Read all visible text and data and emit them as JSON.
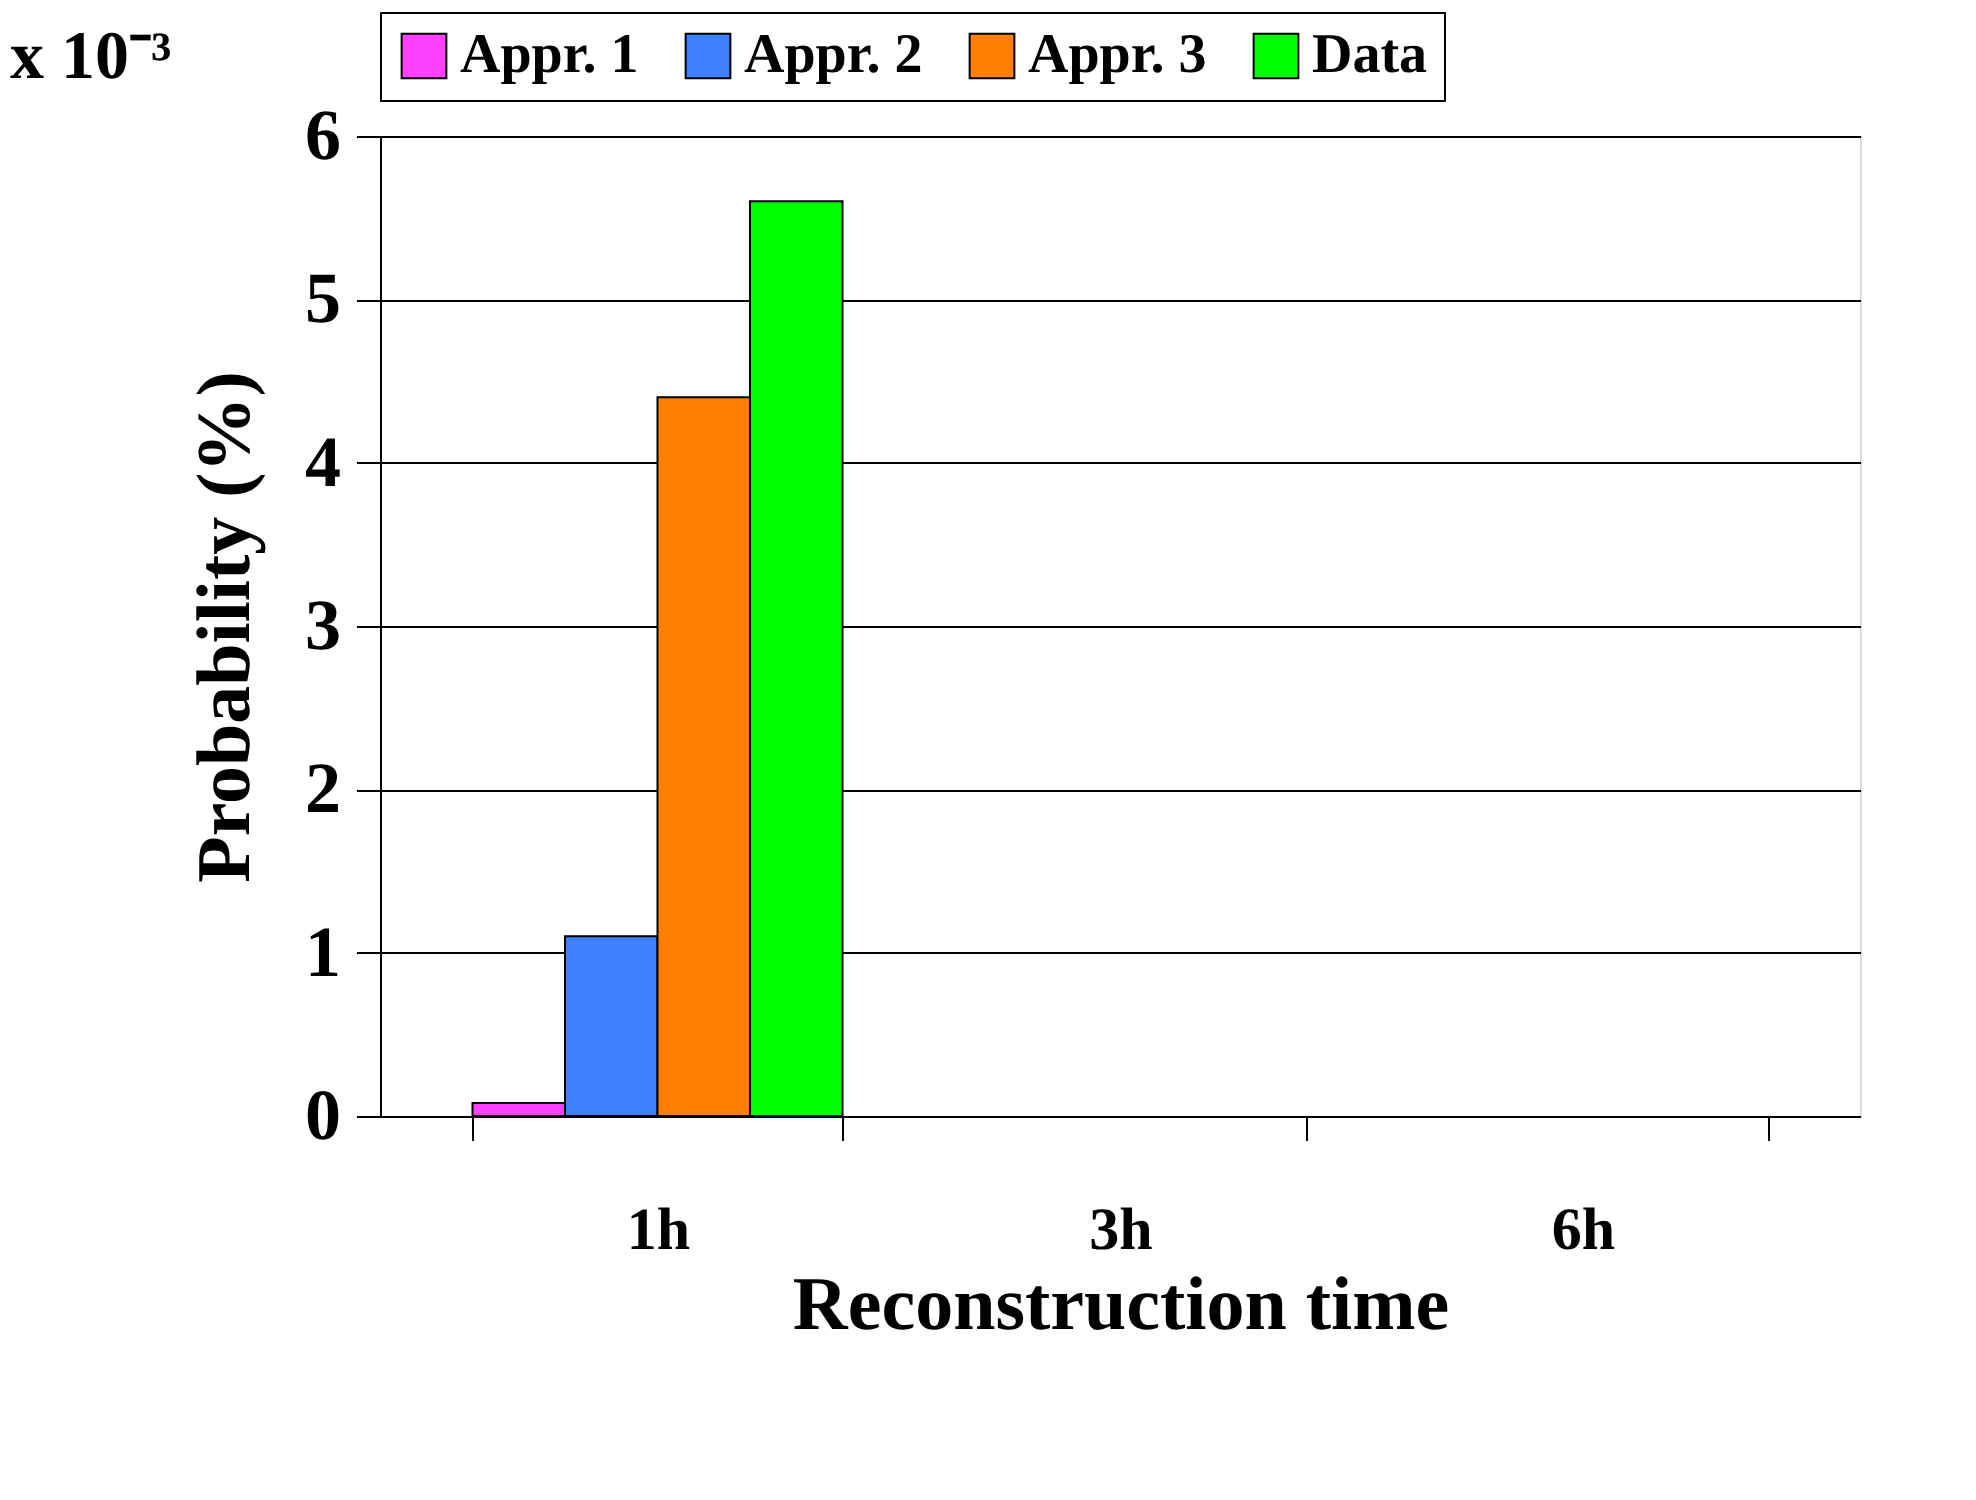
{
  "chart_data": {
    "type": "bar",
    "xlabel": "Reconstruction time",
    "ylabel": "Probability (%)",
    "categories": [
      "1h",
      "3h",
      "6h"
    ],
    "series": [
      {
        "name": "Appr. 1",
        "color": "#ff40ff",
        "values": [
          0.08,
          0,
          0
        ]
      },
      {
        "name": "Appr. 2",
        "color": "#4080ff",
        "values": [
          1.1,
          0,
          0
        ]
      },
      {
        "name": "Appr. 3",
        "color": "#ff8000",
        "values": [
          4.4,
          0,
          0
        ]
      },
      {
        "name": "Data",
        "color": "#00ff00",
        "values": [
          5.6,
          0,
          0
        ]
      }
    ],
    "ylim": [
      0,
      6
    ],
    "yticks": [
      0,
      1,
      2,
      3,
      4,
      5,
      6
    ],
    "grid": "y",
    "legend": "top",
    "annotations": [
      "x 10⁻³"
    ]
  }
}
